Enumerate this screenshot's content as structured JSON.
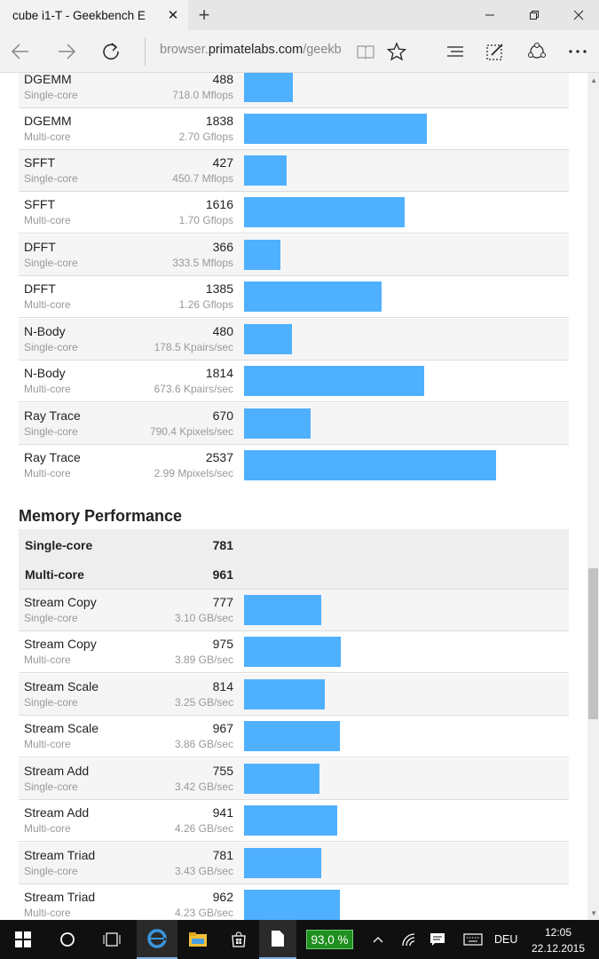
{
  "browser": {
    "tab_title": "cube i1-T - Geekbench E",
    "tab_close_icon": "close-icon",
    "new_tab_icon": "plus-icon",
    "address_prefix": "browser.",
    "address_domain": "primatelabs.com",
    "address_suffix": "/geekbe"
  },
  "fp_rows": [
    {
      "name": "DGEMM",
      "sub": "Single-core",
      "score": "488",
      "rate": "718.0 Mflops",
      "value": 488
    },
    {
      "name": "DGEMM",
      "sub": "Multi-core",
      "score": "1838",
      "rate": "2.70 Gflops",
      "value": 1838
    },
    {
      "name": "SFFT",
      "sub": "Single-core",
      "score": "427",
      "rate": "450.7 Mflops",
      "value": 427
    },
    {
      "name": "SFFT",
      "sub": "Multi-core",
      "score": "1616",
      "rate": "1.70 Gflops",
      "value": 1616
    },
    {
      "name": "DFFT",
      "sub": "Single-core",
      "score": "366",
      "rate": "333.5 Mflops",
      "value": 366
    },
    {
      "name": "DFFT",
      "sub": "Multi-core",
      "score": "1385",
      "rate": "1.26 Gflops",
      "value": 1385
    },
    {
      "name": "N-Body",
      "sub": "Single-core",
      "score": "480",
      "rate": "178.5 Kpairs/sec",
      "value": 480
    },
    {
      "name": "N-Body",
      "sub": "Multi-core",
      "score": "1814",
      "rate": "673.6 Kpairs/sec",
      "value": 1814
    },
    {
      "name": "Ray Trace",
      "sub": "Single-core",
      "score": "670",
      "rate": "790.4 Kpixels/sec",
      "value": 670
    },
    {
      "name": "Ray Trace",
      "sub": "Multi-core",
      "score": "2537",
      "rate": "2.99 Mpixels/sec",
      "value": 2537
    }
  ],
  "memory": {
    "title": "Memory Performance",
    "single_label": "Single-core",
    "single_score": "781",
    "multi_label": "Multi-core",
    "multi_score": "961",
    "rows": [
      {
        "name": "Stream Copy",
        "sub": "Single-core",
        "score": "777",
        "rate": "3.10 GB/sec",
        "value": 777
      },
      {
        "name": "Stream Copy",
        "sub": "Multi-core",
        "score": "975",
        "rate": "3.89 GB/sec",
        "value": 975
      },
      {
        "name": "Stream Scale",
        "sub": "Single-core",
        "score": "814",
        "rate": "3.25 GB/sec",
        "value": 814
      },
      {
        "name": "Stream Scale",
        "sub": "Multi-core",
        "score": "967",
        "rate": "3.86 GB/sec",
        "value": 967
      },
      {
        "name": "Stream Add",
        "sub": "Single-core",
        "score": "755",
        "rate": "3.42 GB/sec",
        "value": 755
      },
      {
        "name": "Stream Add",
        "sub": "Multi-core",
        "score": "941",
        "rate": "4.26 GB/sec",
        "value": 941
      },
      {
        "name": "Stream Triad",
        "sub": "Single-core",
        "score": "781",
        "rate": "3.43 GB/sec",
        "value": 781
      },
      {
        "name": "Stream Triad",
        "sub": "Multi-core",
        "score": "962",
        "rate": "4.23 GB/sec",
        "value": 962
      }
    ]
  },
  "taskbar": {
    "battery": "93,0 %",
    "language": "DEU",
    "time": "12:05",
    "date": "22.12.2015"
  },
  "colors": {
    "bar": "#4fb0ff",
    "taskbar": "#101010",
    "battery": "#1f8f1f"
  }
}
